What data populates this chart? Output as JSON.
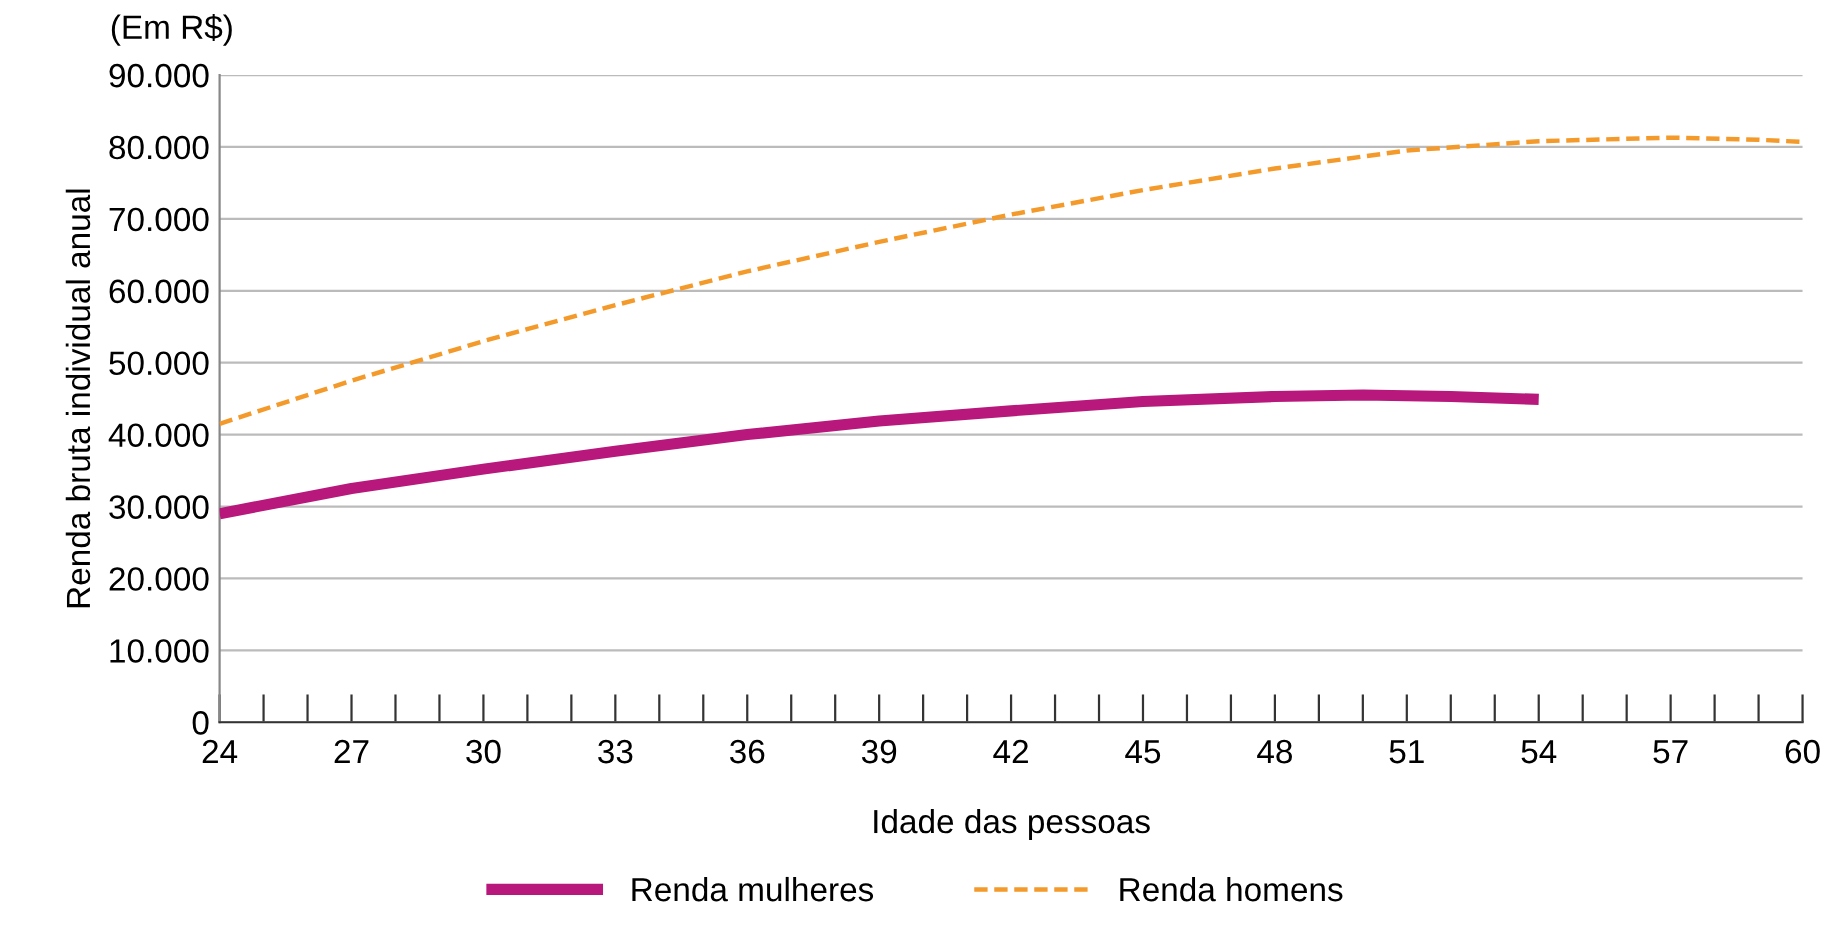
{
  "chart_data": {
    "type": "line",
    "xlabel": "Idade das pessoas",
    "ylabel": "Renda bruta individual anual",
    "annotations": [
      "(Em R$)"
    ],
    "x": [
      24,
      27,
      30,
      33,
      36,
      39,
      42,
      45,
      48,
      50,
      52,
      54
    ],
    "series": [
      {
        "name": "Renda mulheres",
        "color": "#b8177c",
        "line_style": "solid",
        "values": [
          29000,
          32500,
          35200,
          37700,
          40000,
          41900,
          43300,
          44600,
          45300,
          45500,
          45300,
          44900
        ]
      },
      {
        "name": "Renda homens",
        "color": "#f39a2b",
        "line_style": "dashed",
        "x": [
          24,
          27,
          30,
          33,
          36,
          39,
          42,
          45,
          48,
          51,
          54,
          57,
          59,
          60
        ],
        "values": [
          41500,
          47500,
          53000,
          58000,
          62700,
          66800,
          70600,
          74000,
          77000,
          79500,
          80800,
          81300,
          81000,
          80700
        ]
      }
    ],
    "xlim": [
      24,
      60
    ],
    "xticks": [
      24,
      {
        "value": 25,
        "label": null
      },
      {
        "value": 26,
        "label": null
      },
      27,
      {
        "value": 28,
        "label": null
      },
      {
        "value": 29,
        "label": null
      },
      30,
      {
        "value": 31,
        "label": null
      },
      {
        "value": 32,
        "label": null
      },
      33,
      {
        "value": 34,
        "label": null
      },
      {
        "value": 35,
        "label": null
      },
      36,
      {
        "value": 37,
        "label": null
      },
      {
        "value": 38,
        "label": null
      },
      39,
      {
        "value": 40,
        "label": null
      },
      {
        "value": 41,
        "label": null
      },
      42,
      {
        "value": 43,
        "label": null
      },
      {
        "value": 44,
        "label": null
      },
      45,
      {
        "value": 46,
        "label": null
      },
      {
        "value": 47,
        "label": null
      },
      48,
      {
        "value": 49,
        "label": null
      },
      {
        "value": 50,
        "label": null
      },
      51,
      {
        "value": 52,
        "label": null
      },
      {
        "value": 53,
        "label": null
      },
      54,
      {
        "value": 55,
        "label": null
      },
      {
        "value": 56,
        "label": null
      },
      57,
      {
        "value": 58,
        "label": null
      },
      {
        "value": 59,
        "label": null
      },
      60
    ],
    "ylim": [
      0,
      90000
    ],
    "yticks": [
      {
        "value": 0,
        "label": "0"
      },
      {
        "value": 10000,
        "label": "10.000"
      },
      {
        "value": 20000,
        "label": "20.000"
      },
      {
        "value": 30000,
        "label": "30.000"
      },
      {
        "value": 40000,
        "label": "40.000"
      },
      {
        "value": 50000,
        "label": "50.000"
      },
      {
        "value": 60000,
        "label": "60.000"
      },
      {
        "value": 70000,
        "label": "70.000"
      },
      {
        "value": 80000,
        "label": "80.000"
      },
      {
        "value": 90000,
        "label": "90.000"
      }
    ],
    "grid": "y",
    "legend": "bottom",
    "marker": "none"
  }
}
